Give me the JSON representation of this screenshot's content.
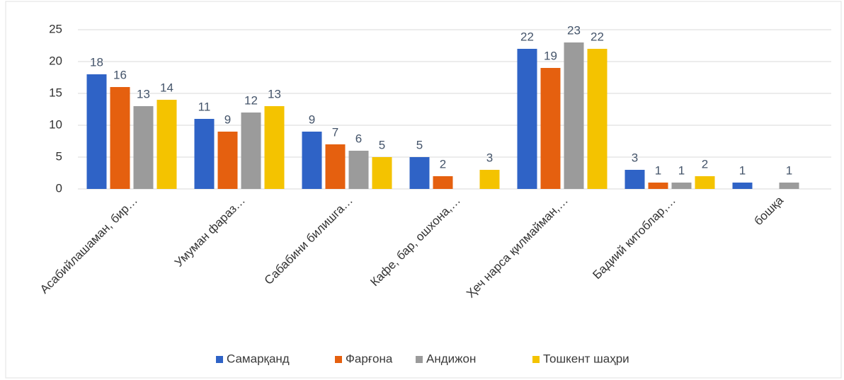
{
  "chart_data": {
    "type": "bar",
    "categories": [
      "Асабийлашаман, бир…",
      "Умуман фараз…",
      "Сабабини билишга…",
      "Кафе, бар, ошхона,…",
      "Ҳеч нарса қилмайман,…",
      "Бадиий китоблар,…",
      "бошқа"
    ],
    "series": [
      {
        "name": "Самарқанд",
        "color": "#2f63c6",
        "values": [
          18,
          11,
          9,
          5,
          22,
          3,
          1
        ]
      },
      {
        "name": "Фарғона",
        "color": "#e5600f",
        "values": [
          16,
          9,
          7,
          2,
          19,
          1,
          null
        ]
      },
      {
        "name": "Андижон",
        "color": "#9b9b9b",
        "values": [
          13,
          12,
          6,
          null,
          23,
          1,
          1
        ]
      },
      {
        "name": "Тошкент шаҳри",
        "color": "#f4c300",
        "values": [
          14,
          13,
          5,
          3,
          22,
          2,
          null
        ]
      }
    ],
    "ylim": [
      0,
      25
    ],
    "yticks": [
      0,
      5,
      10,
      15,
      20,
      25
    ],
    "grid": true,
    "legend": "bottom"
  }
}
